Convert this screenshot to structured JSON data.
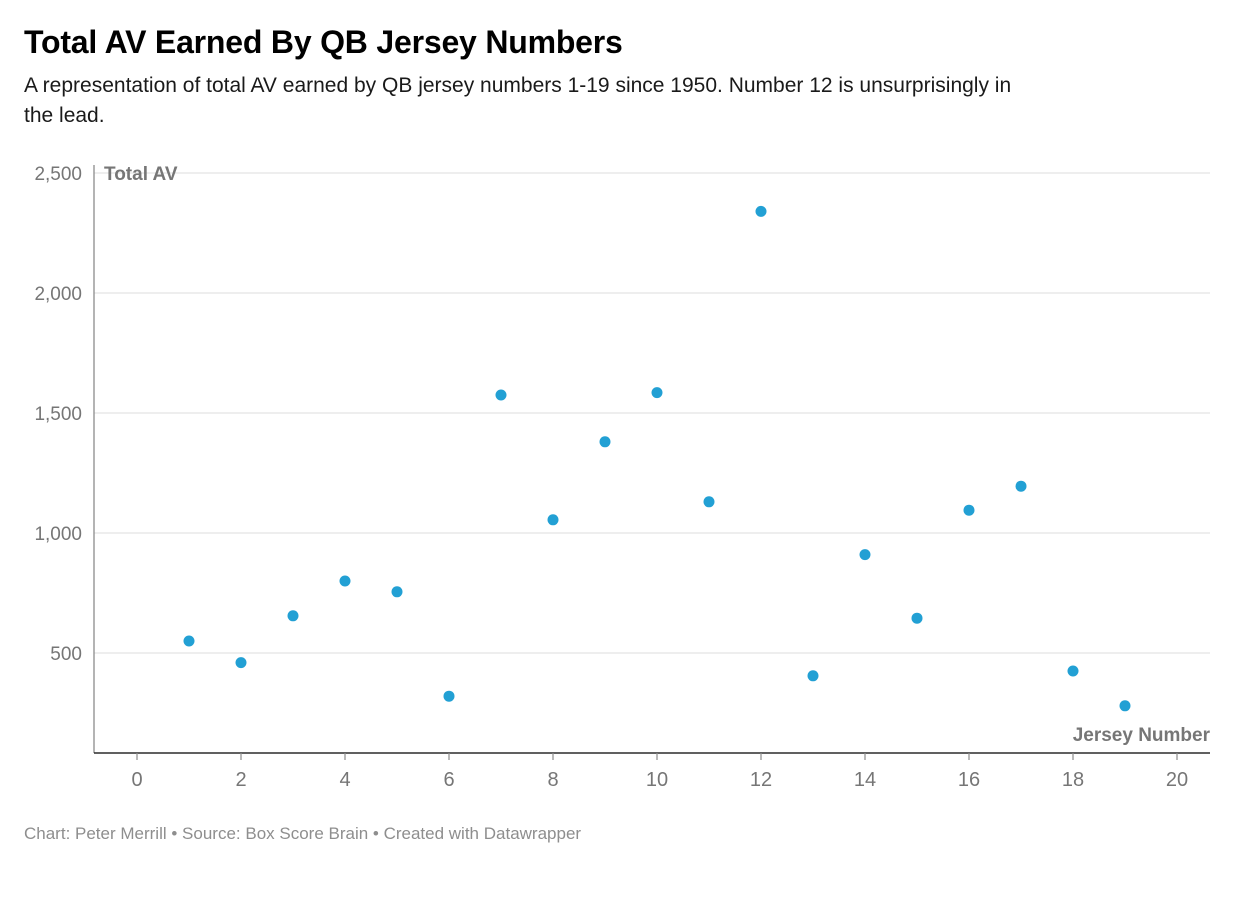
{
  "header": {
    "title": "Total AV Earned By QB Jersey Numbers",
    "subtitle": "A representation of total AV earned by QB jersey numbers 1-19 since 1950. Number 12 is unsurprisingly in the lead."
  },
  "footer": {
    "text": "Chart: Peter Merrill • Source: Box Score Brain • Created with Datawrapper"
  },
  "chart_data": {
    "type": "scatter",
    "title": "Total AV Earned By QB Jersey Numbers",
    "xlabel": "Jersey Number",
    "ylabel": "Total AV",
    "x": [
      1,
      2,
      3,
      4,
      5,
      6,
      7,
      8,
      9,
      10,
      11,
      12,
      13,
      14,
      15,
      16,
      17,
      18,
      19
    ],
    "y": [
      550,
      460,
      655,
      800,
      755,
      320,
      1575,
      1055,
      1380,
      1585,
      1130,
      2340,
      405,
      910,
      645,
      1095,
      1195,
      425,
      280
    ],
    "x_ticks": [
      0,
      2,
      4,
      6,
      8,
      10,
      12,
      14,
      16,
      18,
      20
    ],
    "y_ticks": [
      500,
      1000,
      1500,
      2000,
      2500
    ],
    "xlim": [
      0,
      20
    ],
    "ylim": [
      80,
      2560
    ],
    "grid": "horizontal",
    "legend": "none",
    "point_color": "#22a0d4",
    "grid_color": "#dcdcdc",
    "axis_line_color": "#8c8c8c",
    "baseline_color": "#2b2b2b",
    "tick_label_color": "#767676"
  }
}
